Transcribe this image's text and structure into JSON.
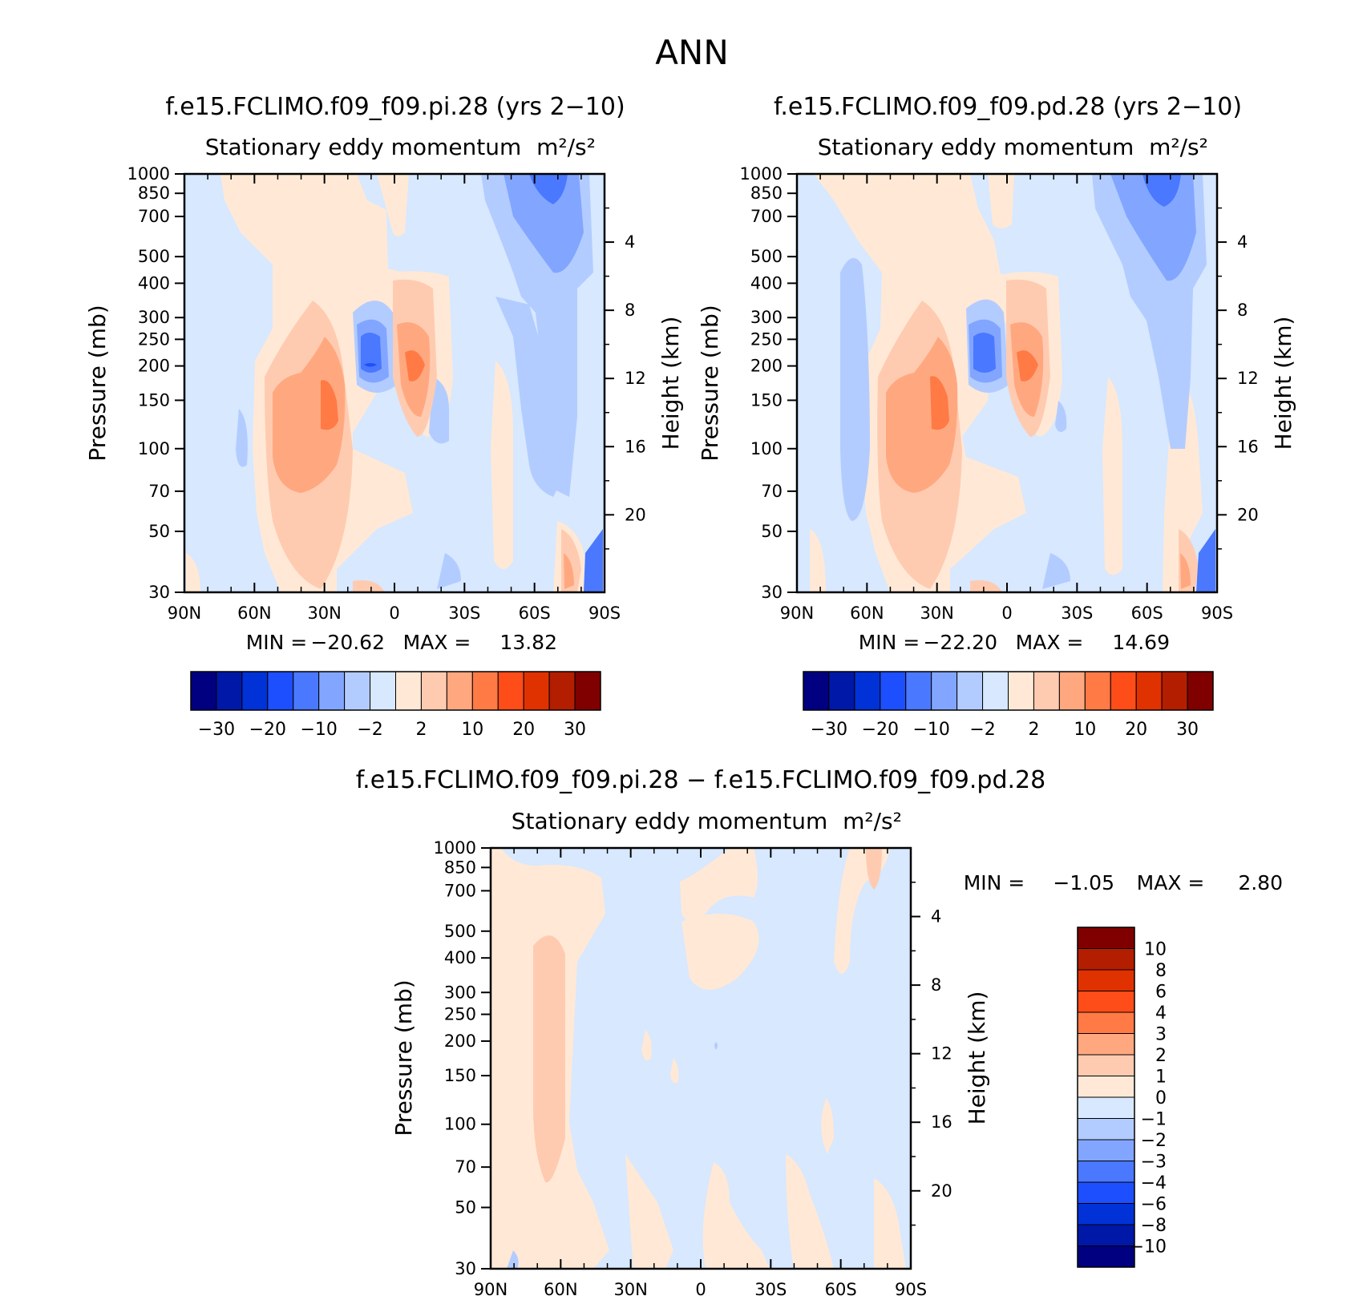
{
  "page": {
    "title": "ANN"
  },
  "colors": {
    "scale": [
      "#000080",
      "#0018a8",
      "#0032d8",
      "#1e4fff",
      "#4a78ff",
      "#82a6ff",
      "#b3ccff",
      "#d7e8ff",
      "#ffe9d6",
      "#ffcbb0",
      "#ffa880",
      "#ff7a45",
      "#ff4d1a",
      "#e03200",
      "#b41e00",
      "#800000"
    ]
  },
  "chart_data": [
    {
      "type": "contour",
      "title": "f.e15.FCLIMO.f09_f09.pi.28 (yrs 2−10)",
      "subtitle": "Stationary eddy momentum",
      "units": "m²/s²",
      "xlabel": "",
      "ylabel": "Pressure (mb)",
      "y2label": "Height (km)",
      "x_ticks": [
        "90N",
        "60N",
        "30N",
        "0",
        "30S",
        "60S",
        "90S"
      ],
      "y_ticks": [
        30,
        50,
        70,
        100,
        150,
        200,
        250,
        300,
        400,
        500,
        700,
        850,
        1000
      ],
      "y2_ticks": [
        20,
        16,
        12,
        8,
        4
      ],
      "ylim": [
        1000,
        30
      ],
      "y_scale": "log",
      "stats": {
        "min_label": "MIN =",
        "min": "−20.62",
        "max_label": "MAX =",
        "max": "13.82"
      },
      "colorbar_labels": [
        "−30",
        "−20",
        "−10",
        "−2",
        "2",
        "10",
        "20",
        "30"
      ]
    },
    {
      "type": "contour",
      "title": "f.e15.FCLIMO.f09_f09.pd.28 (yrs 2−10)",
      "subtitle": "Stationary eddy momentum",
      "units": "m²/s²",
      "xlabel": "",
      "ylabel": "Pressure (mb)",
      "y2label": "Height (km)",
      "x_ticks": [
        "90N",
        "60N",
        "30N",
        "0",
        "30S",
        "60S",
        "90S"
      ],
      "y_ticks": [
        30,
        50,
        70,
        100,
        150,
        200,
        250,
        300,
        400,
        500,
        700,
        850,
        1000
      ],
      "y2_ticks": [
        20,
        16,
        12,
        8,
        4
      ],
      "ylim": [
        1000,
        30
      ],
      "y_scale": "log",
      "stats": {
        "min_label": "MIN =",
        "min": "−22.20",
        "max_label": "MAX =",
        "max": "14.69"
      },
      "colorbar_labels": [
        "−30",
        "−20",
        "−10",
        "−2",
        "2",
        "10",
        "20",
        "30"
      ]
    },
    {
      "type": "contour",
      "title": "f.e15.FCLIMO.f09_f09.pi.28 − f.e15.FCLIMO.f09_f09.pd.28",
      "subtitle": "Stationary eddy momentum",
      "units": "m²/s²",
      "xlabel": "",
      "ylabel": "Pressure (mb)",
      "y2label": "Height (km)",
      "x_ticks": [
        "90N",
        "60N",
        "30N",
        "0",
        "30S",
        "60S",
        "90S"
      ],
      "y_ticks": [
        30,
        50,
        70,
        100,
        150,
        200,
        250,
        300,
        400,
        500,
        700,
        850,
        1000
      ],
      "y2_ticks": [
        20,
        16,
        12,
        8,
        4
      ],
      "ylim": [
        1000,
        30
      ],
      "y_scale": "log",
      "stats": {
        "min_label": "MIN =",
        "min": "−1.05",
        "max_label": "MAX =",
        "max": "2.80"
      },
      "colorbar_labels": [
        "10",
        "8",
        "6",
        "4",
        "3",
        "2",
        "1",
        "0",
        "−1",
        "−2",
        "−3",
        "−4",
        "−6",
        "−8",
        "−10"
      ]
    }
  ]
}
